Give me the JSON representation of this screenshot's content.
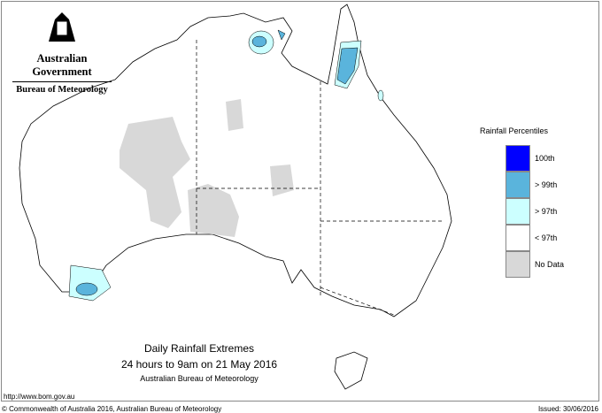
{
  "logo": {
    "line1": "Australian Government",
    "line2": "Bureau of Meteorology"
  },
  "legend": {
    "title": "Rainfall Percentiles",
    "items": [
      {
        "label": "100th",
        "color": "#0000ff"
      },
      {
        "label": "> 99th",
        "color": "#5ab4dc"
      },
      {
        "label": "> 97th",
        "color": "#ccffff"
      },
      {
        "label": "< 97th",
        "color": "#ffffff"
      },
      {
        "label": "No Data",
        "color": "#d8d8d8"
      }
    ]
  },
  "caption": {
    "title": "Daily Rainfall Extremes",
    "period": "24 hours to 9am on 21 May 2016",
    "source": "Australian Bureau of Meteorology"
  },
  "footer": {
    "url": "http://www.bom.gov.au",
    "copyright": "© Commonwealth of Australia 2016, Australian Bureau of Meteorology",
    "issued": "Issued: 30/06/2016"
  }
}
